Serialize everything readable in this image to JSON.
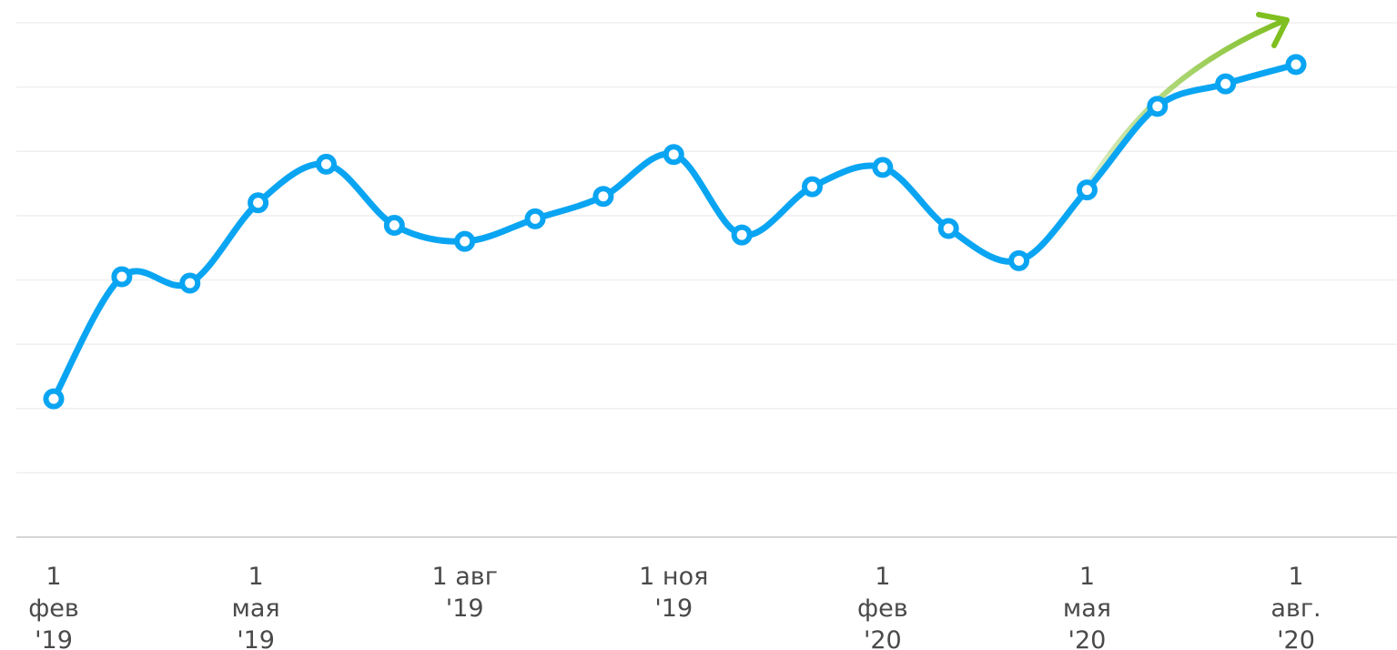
{
  "chart_data": {
    "type": "line",
    "title": "",
    "xlabel": "",
    "ylabel": "",
    "ylim": [
      0,
      8
    ],
    "grid": true,
    "x_tick_labels": [
      {
        "date": "2019-02-01",
        "lines": [
          "1",
          "фев",
          "'19"
        ]
      },
      {
        "date": "2019-05-01",
        "lines": [
          "1",
          "мая",
          "'19"
        ]
      },
      {
        "date": "2019-08-01",
        "lines": [
          "1 авг",
          "'19"
        ]
      },
      {
        "date": "2019-11-01",
        "lines": [
          "1 ноя",
          "'19"
        ]
      },
      {
        "date": "2020-02-01",
        "lines": [
          "1",
          "фев",
          "'20"
        ]
      },
      {
        "date": "2020-05-01",
        "lines": [
          "1",
          "мая",
          "'20"
        ]
      },
      {
        "date": "2020-08-01",
        "lines": [
          "1",
          "авг.",
          "'20"
        ]
      }
    ],
    "series": [
      {
        "color": "#0aa5f2",
        "points": [
          {
            "x": "2019-02-01",
            "y": 2.15
          },
          {
            "x": "2019-03-03",
            "y": 4.05
          },
          {
            "x": "2019-04-02",
            "y": 3.95
          },
          {
            "x": "2019-05-02",
            "y": 5.2
          },
          {
            "x": "2019-06-01",
            "y": 5.8
          },
          {
            "x": "2019-07-01",
            "y": 4.85
          },
          {
            "x": "2019-08-01",
            "y": 4.6
          },
          {
            "x": "2019-09-01",
            "y": 4.95
          },
          {
            "x": "2019-10-01",
            "y": 5.3
          },
          {
            "x": "2019-11-01",
            "y": 5.95
          },
          {
            "x": "2019-12-01",
            "y": 4.7
          },
          {
            "x": "2020-01-01",
            "y": 5.45
          },
          {
            "x": "2020-02-01",
            "y": 5.75
          },
          {
            "x": "2020-03-01",
            "y": 4.8
          },
          {
            "x": "2020-04-01",
            "y": 4.3
          },
          {
            "x": "2020-05-01",
            "y": 5.4
          },
          {
            "x": "2020-06-01",
            "y": 6.7
          },
          {
            "x": "2020-07-01",
            "y": 7.05
          },
          {
            "x": "2020-08-01",
            "y": 7.35
          }
        ]
      }
    ],
    "annotation": {
      "type": "trend-arrow",
      "color": "#7fbf1f"
    }
  }
}
